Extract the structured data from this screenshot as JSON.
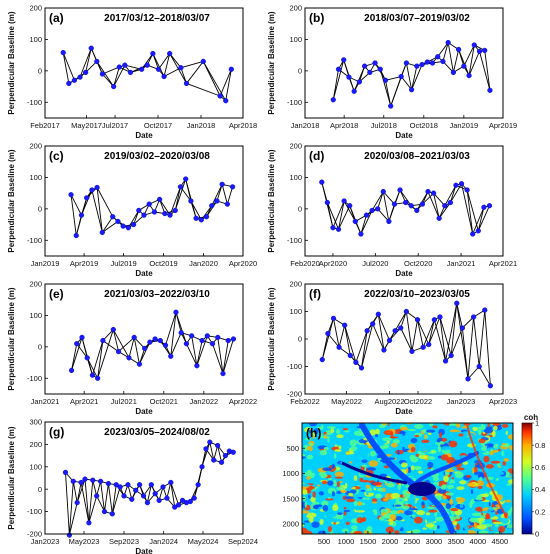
{
  "chart_data": [
    {
      "type": "line",
      "panel_label": "(a)",
      "title": "2017/03/12–2018/03/07",
      "xlabel": "Date",
      "ylabel": "Perpendicular Baseline (m)",
      "xlim": [
        "2017-02-01",
        "2018-04-01"
      ],
      "ylim": [
        -150,
        200
      ],
      "yticks": [
        -100,
        0,
        100,
        200
      ],
      "xticks": [
        "Feb2017",
        "May2017",
        "Jul2017",
        "Oct2017",
        "Jan2018",
        "Apr2018"
      ],
      "x": [
        "2017-03-12",
        "2017-03-24",
        "2017-04-05",
        "2017-04-17",
        "2017-04-29",
        "2017-05-11",
        "2017-05-23",
        "2017-06-04",
        "2017-06-28",
        "2017-07-10",
        "2017-07-22",
        "2017-08-03",
        "2017-08-27",
        "2017-09-08",
        "2017-09-20",
        "2017-10-02",
        "2017-10-14",
        "2017-10-26",
        "2017-11-19",
        "2017-12-01",
        "2018-01-06",
        "2018-02-11",
        "2018-02-23",
        "2018-03-07"
      ],
      "values": [
        58,
        -40,
        -30,
        -20,
        -5,
        72,
        30,
        -10,
        -50,
        12,
        18,
        -5,
        5,
        18,
        55,
        5,
        -18,
        55,
        10,
        -40,
        30,
        -80,
        -95,
        5
      ]
    },
    {
      "type": "line",
      "panel_label": "(b)",
      "title": "2018/03/07–2019/03/02",
      "xlabel": "Date",
      "ylabel": "Perpendicular Baseline (m)",
      "xlim": [
        "2018-01-01",
        "2019-04-01"
      ],
      "ylim": [
        -150,
        200
      ],
      "yticks": [
        -100,
        0,
        100,
        200
      ],
      "xticks": [
        "Jan2018",
        "Apr2018",
        "Jul2018",
        "Oct2018",
        "Jan2019",
        "Apr2019"
      ],
      "x": [
        "2018-03-07",
        "2018-03-19",
        "2018-03-31",
        "2018-04-12",
        "2018-04-24",
        "2018-05-06",
        "2018-05-18",
        "2018-05-30",
        "2018-06-11",
        "2018-06-23",
        "2018-07-05",
        "2018-07-17",
        "2018-08-10",
        "2018-08-22",
        "2018-09-03",
        "2018-09-15",
        "2018-09-27",
        "2018-10-09",
        "2018-10-21",
        "2018-11-02",
        "2018-11-14",
        "2018-11-26",
        "2018-12-08",
        "2018-12-20",
        "2019-01-01",
        "2019-01-13",
        "2019-01-25",
        "2019-02-06",
        "2019-02-18",
        "2019-03-02"
      ],
      "values": [
        -92,
        5,
        35,
        -20,
        -65,
        -35,
        15,
        -5,
        25,
        5,
        -30,
        -112,
        -18,
        25,
        -60,
        15,
        20,
        28,
        25,
        45,
        30,
        90,
        -5,
        68,
        15,
        -15,
        82,
        62,
        65,
        -62
      ]
    },
    {
      "type": "line",
      "panel_label": "(c)",
      "title": "2019/03/02–2020/03/08",
      "xlabel": "Date",
      "ylabel": "Perpendicular Baseline (m)",
      "xlim": [
        "2019-01-01",
        "2020-04-01"
      ],
      "ylim": [
        -150,
        200
      ],
      "yticks": [
        -100,
        0,
        100,
        200
      ],
      "xticks": [
        "Jan2019",
        "Apr2019",
        "Jul2019",
        "Oct2019",
        "Jan2020",
        "Apr2020"
      ],
      "x": [
        "2019-03-02",
        "2019-03-14",
        "2019-03-26",
        "2019-04-07",
        "2019-04-19",
        "2019-05-01",
        "2019-05-13",
        "2019-06-06",
        "2019-06-18",
        "2019-06-30",
        "2019-07-12",
        "2019-07-24",
        "2019-08-05",
        "2019-08-17",
        "2019-08-29",
        "2019-09-10",
        "2019-09-22",
        "2019-10-04",
        "2019-10-16",
        "2019-10-28",
        "2019-11-09",
        "2019-11-21",
        "2019-12-03",
        "2019-12-15",
        "2019-12-27",
        "2020-01-08",
        "2020-01-20",
        "2020-02-01",
        "2020-02-13",
        "2020-02-25",
        "2020-03-08"
      ],
      "values": [
        45,
        -85,
        -20,
        35,
        60,
        68,
        -75,
        -25,
        -40,
        -55,
        -60,
        -50,
        -5,
        -20,
        15,
        -10,
        30,
        -15,
        -20,
        -5,
        70,
        95,
        25,
        -30,
        -35,
        -25,
        10,
        25,
        78,
        15,
        70
      ]
    },
    {
      "type": "line",
      "panel_label": "(d)",
      "title": "2020/03/08–2021/03/03",
      "xlabel": "Date",
      "ylabel": "Perpendicular Baseline (m)",
      "xlim": [
        "2020-02-01",
        "2021-04-01"
      ],
      "ylim": [
        -150,
        200
      ],
      "yticks": [
        -100,
        0,
        100,
        200
      ],
      "xticks": [
        "Feb2020",
        "Apr2020",
        "Jul2020",
        "Oct2020",
        "Jan2021",
        "Apr2021"
      ],
      "x": [
        "2020-03-08",
        "2020-03-20",
        "2020-04-01",
        "2020-04-13",
        "2020-04-25",
        "2020-05-07",
        "2020-05-19",
        "2020-05-31",
        "2020-06-12",
        "2020-06-24",
        "2020-07-06",
        "2020-07-18",
        "2020-07-30",
        "2020-08-11",
        "2020-08-23",
        "2020-09-04",
        "2020-09-16",
        "2020-09-28",
        "2020-10-10",
        "2020-10-22",
        "2020-11-03",
        "2020-11-15",
        "2020-11-27",
        "2020-12-09",
        "2020-12-21",
        "2021-01-02",
        "2021-01-14",
        "2021-01-26",
        "2021-02-07",
        "2021-02-19",
        "2021-03-03"
      ],
      "values": [
        85,
        20,
        -60,
        -65,
        25,
        10,
        -40,
        -80,
        -20,
        -5,
        0,
        55,
        -40,
        15,
        60,
        20,
        10,
        -5,
        15,
        55,
        50,
        -30,
        10,
        20,
        75,
        80,
        60,
        -80,
        -70,
        5,
        10
      ]
    },
    {
      "type": "line",
      "panel_label": "(e)",
      "title": "2021/03/03–2022/03/10",
      "xlabel": "Date",
      "ylabel": "Perpendicular Baseline (m)",
      "xlim": [
        "2021-01-01",
        "2022-04-01"
      ],
      "ylim": [
        -150,
        200
      ],
      "yticks": [
        -100,
        0,
        100,
        200
      ],
      "xticks": [
        "Jan2021",
        "Apr2021",
        "Jul2021",
        "Oct2021",
        "Jan2022",
        "Apr2022"
      ],
      "x": [
        "2021-03-03",
        "2021-03-15",
        "2021-03-27",
        "2021-04-08",
        "2021-04-20",
        "2021-05-02",
        "2021-05-14",
        "2021-06-07",
        "2021-06-19",
        "2021-07-13",
        "2021-07-25",
        "2021-08-06",
        "2021-08-18",
        "2021-08-30",
        "2021-09-11",
        "2021-09-23",
        "2021-10-05",
        "2021-10-17",
        "2021-10-29",
        "2021-11-10",
        "2021-11-22",
        "2021-12-04",
        "2021-12-16",
        "2021-12-28",
        "2022-01-09",
        "2022-01-21",
        "2022-02-02",
        "2022-02-14",
        "2022-02-26",
        "2022-03-10"
      ],
      "values": [
        -75,
        10,
        30,
        -35,
        -90,
        -100,
        20,
        55,
        -15,
        -35,
        30,
        -55,
        -5,
        15,
        25,
        20,
        5,
        -30,
        110,
        45,
        10,
        35,
        -60,
        20,
        35,
        10,
        30,
        -85,
        20,
        25
      ]
    },
    {
      "type": "line",
      "panel_label": "(f)",
      "title": "2022/03/10–2023/03/05",
      "xlabel": "Date",
      "ylabel": "Perpendicular Baseline (m)",
      "xlim": [
        "2022-02-01",
        "2023-04-01"
      ],
      "ylim": [
        -200,
        200
      ],
      "yticks": [
        -200,
        -100,
        0,
        100,
        200
      ],
      "xticks": [
        "Feb2022",
        "May2022",
        "Aug2022",
        "Oct2022",
        "Jan2023",
        "Apr2023"
      ],
      "x": [
        "2022-03-10",
        "2022-03-22",
        "2022-04-03",
        "2022-04-15",
        "2022-04-27",
        "2022-05-09",
        "2022-05-21",
        "2022-06-02",
        "2022-06-14",
        "2022-06-26",
        "2022-07-08",
        "2022-07-20",
        "2022-08-01",
        "2022-08-13",
        "2022-08-25",
        "2022-09-06",
        "2022-09-18",
        "2022-09-30",
        "2022-10-12",
        "2022-10-24",
        "2022-11-05",
        "2022-11-17",
        "2022-11-29",
        "2022-12-11",
        "2022-12-23",
        "2023-01-04",
        "2023-01-16",
        "2023-01-28",
        "2023-02-09",
        "2023-02-21",
        "2023-03-05"
      ],
      "values": [
        -75,
        20,
        75,
        -30,
        50,
        -60,
        -85,
        -105,
        30,
        55,
        90,
        -40,
        -5,
        30,
        40,
        100,
        -45,
        70,
        -30,
        -20,
        70,
        80,
        -80,
        -60,
        130,
        40,
        -145,
        80,
        -100,
        105,
        -170
      ]
    },
    {
      "type": "line",
      "panel_label": "(g)",
      "title": "2023/03/05–2024/08/02",
      "xlabel": "Date",
      "ylabel": "Perpendicular Baseline (m)",
      "xlim": [
        "2023-01-01",
        "2024-09-01"
      ],
      "ylim": [
        -200,
        300
      ],
      "yticks": [
        -200,
        -100,
        0,
        100,
        200,
        300
      ],
      "xticks": [
        "Jan2023",
        "May2023",
        "Sep2023",
        "Jan2024",
        "May2024",
        "Sep2024"
      ],
      "x": [
        "2023-03-05",
        "2023-03-17",
        "2023-03-29",
        "2023-04-10",
        "2023-04-22",
        "2023-05-04",
        "2023-05-16",
        "2023-05-28",
        "2023-06-09",
        "2023-06-21",
        "2023-07-03",
        "2023-07-15",
        "2023-07-27",
        "2023-08-08",
        "2023-08-20",
        "2023-09-01",
        "2023-09-13",
        "2023-09-25",
        "2023-10-07",
        "2023-10-19",
        "2023-10-31",
        "2023-11-12",
        "2023-11-24",
        "2023-12-06",
        "2023-12-18",
        "2023-12-30",
        "2024-01-11",
        "2024-01-23",
        "2024-02-04",
        "2024-02-16",
        "2024-02-28",
        "2024-03-11",
        "2024-03-23",
        "2024-04-04",
        "2024-04-16",
        "2024-04-28",
        "2024-05-10",
        "2024-05-22",
        "2024-06-03",
        "2024-06-15",
        "2024-06-27",
        "2024-07-09",
        "2024-07-21",
        "2024-08-02"
      ],
      "values": [
        75,
        -205,
        35,
        -60,
        30,
        45,
        -150,
        40,
        -30,
        35,
        -100,
        25,
        -110,
        20,
        10,
        -30,
        20,
        -45,
        -5,
        20,
        -30,
        -60,
        20,
        -20,
        -50,
        10,
        -40,
        30,
        -80,
        -70,
        -50,
        -60,
        -55,
        -40,
        20,
        100,
        180,
        210,
        130,
        195,
        120,
        150,
        170,
        165
      ]
    },
    {
      "type": "heatmap",
      "panel_label": "(h)",
      "xticks": [
        500,
        1000,
        1500,
        2000,
        2500,
        3000,
        3500,
        4000,
        4500
      ],
      "yticks": [
        500,
        1000,
        1500,
        2000
      ],
      "xlim": [
        0,
        4800
      ],
      "ylim": [
        2200,
        0
      ],
      "colorbar": {
        "label": "coh",
        "min": 0,
        "max": 1,
        "ticks": [
          0,
          0.2,
          0.4,
          0.6,
          0.8,
          1
        ]
      },
      "colors": [
        "#00008f",
        "#0050ff",
        "#00d0ff",
        "#50ff90",
        "#d0ff20",
        "#ffb000",
        "#ff3000",
        "#800000"
      ]
    }
  ]
}
